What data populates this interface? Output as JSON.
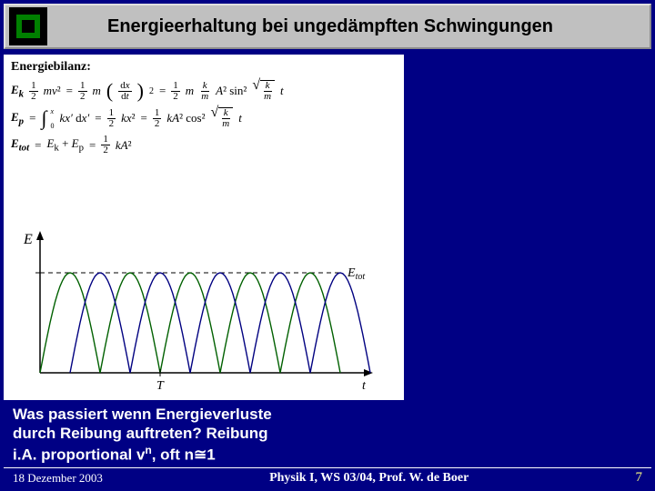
{
  "header": {
    "title": "Energieerhaltung bei ungedämpften Schwingungen"
  },
  "equations": {
    "section_label": "Energiebilanz:",
    "ek_var": "E",
    "ek_sub": "k",
    "ep_var": "E",
    "ep_sub": "p",
    "etot_var": "E",
    "etot_sub": "tot",
    "ek_terms": [
      "½",
      "mv²",
      "=",
      "½",
      "m",
      "(dx/dt)²",
      "=",
      "½",
      "m",
      "(k/m)",
      "A²",
      "sin²",
      "√(k/m)",
      "t"
    ],
    "ep_terms": [
      "∫₀ˣ",
      "kx′dx′",
      "=",
      "½",
      "kx²",
      "=",
      "½",
      "kA²",
      "cos²",
      "√(k/m)",
      "t"
    ],
    "etot_terms": [
      "E_k",
      "+",
      "E_p",
      "=",
      "½",
      "kA²"
    ]
  },
  "graph": {
    "y_label": "E",
    "x_label_T": "T",
    "x_label_t": "t",
    "etot_label": "E",
    "etot_sub": "tot",
    "colors": {
      "axis": "#000000",
      "curve1": "#006000",
      "curve2": "#000080",
      "etot_line": "#000000"
    },
    "periods": 2.5,
    "amplitude": 1.0
  },
  "question": {
    "line1": "Was passiert wenn Energieverluste",
    "line2": "durch Reibung auftreten? Reibung",
    "line3_a": "i.A. proportional v",
    "line3_sup": "n",
    "line3_b": ", oft n",
    "line3_approx": "≅",
    "line3_c": "1"
  },
  "footer": {
    "date": "18 Dezember 2003",
    "center": "Physik I,  WS 03/04,  Prof. W. de Boer",
    "page": "7"
  }
}
